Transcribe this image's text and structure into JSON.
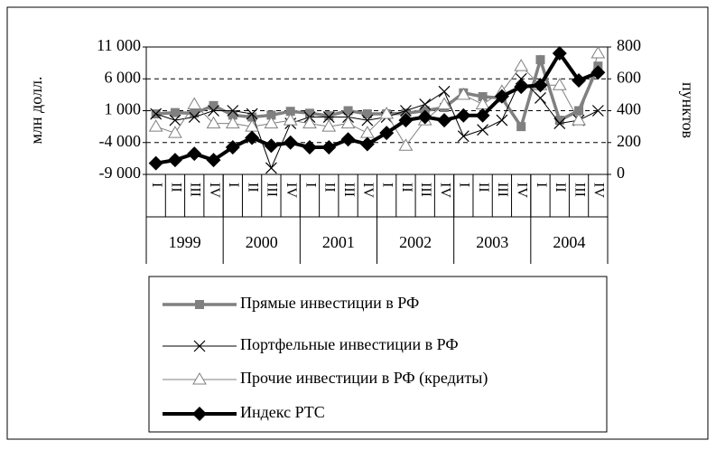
{
  "chart_data": {
    "type": "line",
    "categories": [
      "I",
      "II",
      "III",
      "IV",
      "I",
      "II",
      "III",
      "IV",
      "I",
      "II",
      "III",
      "IV",
      "I",
      "II",
      "III",
      "IV",
      "I",
      "II",
      "III",
      "IV",
      "I",
      "II",
      "III",
      "IV"
    ],
    "groups": [
      "1999",
      "2000",
      "2001",
      "2002",
      "2003",
      "2004"
    ],
    "y_label": "млн долл.",
    "y2_label": "пунктов",
    "ylim": [
      -9000,
      11000
    ],
    "yticks": [
      {
        "value": -9000,
        "label": "-9 000"
      },
      {
        "value": -4000,
        "label": "-4 000"
      },
      {
        "value": 1000,
        "label": "1 000"
      },
      {
        "value": 6000,
        "label": "6 000"
      },
      {
        "value": 11000,
        "label": "11 000"
      }
    ],
    "y2lim": [
      0,
      800
    ],
    "y2ticks": [
      0,
      200,
      400,
      600,
      800
    ],
    "grid": true,
    "legend": "bottom",
    "series": [
      {
        "name": "Прямые инвестиции в РФ",
        "color": "#808080",
        "marker": "square",
        "values": [
          500,
          700,
          600,
          1800,
          300,
          0,
          300,
          900,
          600,
          200,
          1000,
          500,
          500,
          600,
          1000,
          1500,
          3800,
          3200,
          3000,
          -1500,
          9000,
          -500,
          1000,
          8000
        ]
      },
      {
        "name": "Портфельные инвестиции в РФ",
        "color": "#000000",
        "marker": "x",
        "values": [
          500,
          -500,
          0,
          1000,
          1000,
          500,
          -8000,
          -1000,
          0,
          0,
          0,
          -500,
          0,
          1000,
          2000,
          4000,
          -3000,
          -2000,
          -500,
          6000,
          3000,
          -1000,
          -500,
          1000
        ]
      },
      {
        "name": "Прочие инвестиции в РФ (кредиты)",
        "color": "#808080",
        "marker": "triangle",
        "values": [
          -1500,
          -2500,
          2000,
          -1000,
          -1000,
          -1500,
          -1000,
          -500,
          -1000,
          -1500,
          -1000,
          -2500,
          500,
          -4500,
          -500,
          2000,
          3500,
          2000,
          4000,
          8000,
          5000,
          5000,
          -500,
          10000
        ]
      },
      {
        "name": "Индекс РТС",
        "color": "#000000",
        "marker": "diamond",
        "axis": "y2",
        "values": [
          70,
          90,
          130,
          90,
          170,
          230,
          180,
          200,
          170,
          170,
          220,
          190,
          260,
          340,
          360,
          340,
          370,
          370,
          490,
          550,
          560,
          760,
          590,
          640
        ]
      }
    ]
  }
}
